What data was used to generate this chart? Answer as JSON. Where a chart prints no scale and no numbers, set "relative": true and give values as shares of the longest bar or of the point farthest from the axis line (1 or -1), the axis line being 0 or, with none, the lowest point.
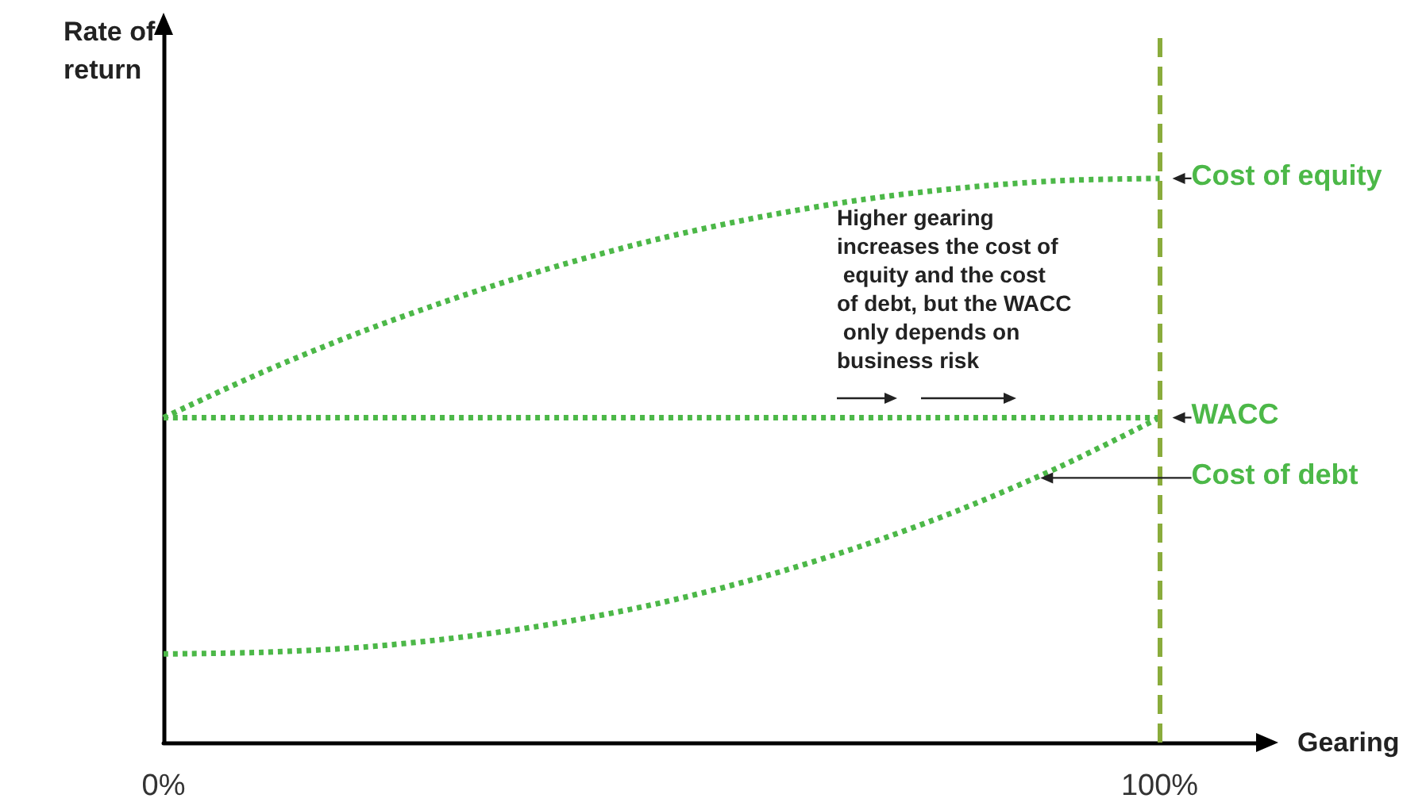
{
  "chart_data": {
    "type": "line",
    "relative": true,
    "xlabel": "Gearing",
    "ylabel": "Rate of return",
    "x": [
      0,
      10,
      20,
      30,
      40,
      50,
      60,
      70,
      80,
      90,
      100
    ],
    "series": [
      {
        "name": "Cost of equity",
        "color": "#4cb848",
        "values": [
          0.576,
          0.657,
          0.729,
          0.792,
          0.847,
          0.894,
          0.932,
          0.962,
          0.983,
          0.996,
          1
        ]
      },
      {
        "name": "WACC",
        "color": "#4cb848",
        "values": [
          0.576,
          0.576,
          0.576,
          0.576,
          0.576,
          0.576,
          0.576,
          0.576,
          0.576,
          0.576,
          0.576
        ]
      },
      {
        "name": "Cost of debt",
        "color": "#4cb848",
        "values": [
          0.157,
          0.16,
          0.169,
          0.187,
          0.213,
          0.248,
          0.293,
          0.348,
          0.413,
          0.489,
          0.576
        ]
      }
    ],
    "xlim": [
      0,
      110
    ],
    "xticks": [
      {
        "value": 0,
        "label": "0%"
      },
      {
        "value": 100,
        "label": "100%"
      }
    ],
    "ref_lines": [
      {
        "axis": "x",
        "value": 100,
        "label": null,
        "color": "#8aac3c",
        "line_style": "dashed"
      }
    ],
    "annotations": [
      "Higher gearing increases the cost of equity and the cost of debt, but the WACC only depends on business risk"
    ],
    "line_style": "dotted",
    "marker": "none",
    "grid": false,
    "legend": false
  }
}
